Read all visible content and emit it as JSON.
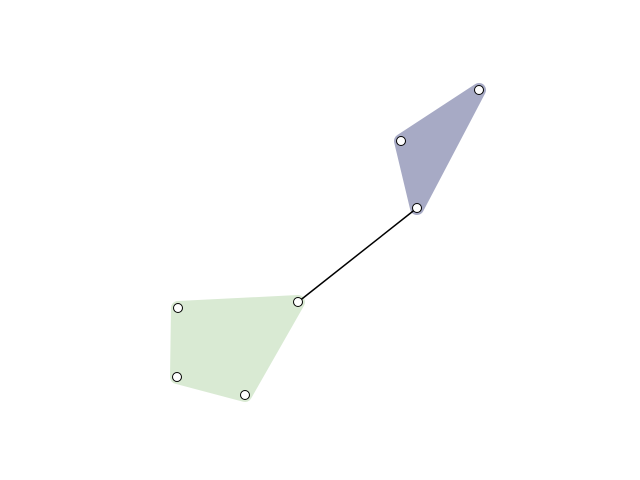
{
  "diagram": {
    "kind": "graph",
    "clusters": [
      {
        "id": "cluster-green",
        "fill": "#d9ead3",
        "nodes": [
          "g1",
          "g2",
          "g3",
          "g4"
        ]
      },
      {
        "id": "cluster-purple",
        "fill": "#a7aac5",
        "nodes": [
          "p1",
          "p2",
          "p3"
        ]
      }
    ],
    "edges": [
      {
        "from": "g4",
        "to": "p3",
        "stroke": "#000000"
      }
    ],
    "node_style": {
      "fill": "#ffffff",
      "stroke": "#000000"
    }
  }
}
